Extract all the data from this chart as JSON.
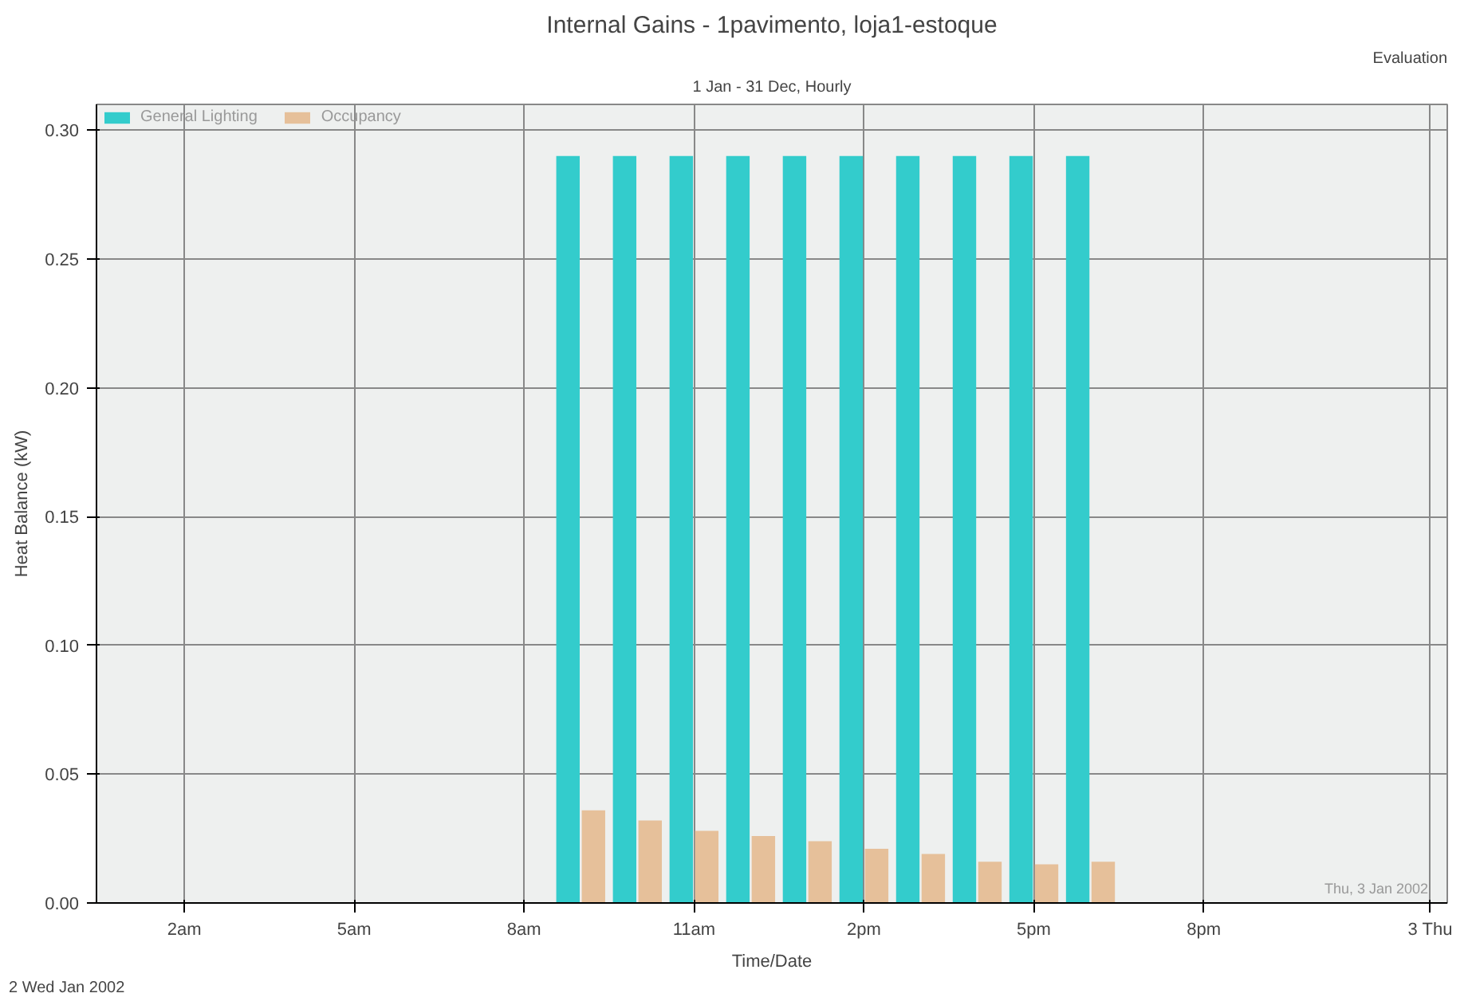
{
  "chart_data": {
    "type": "bar",
    "title": "Internal Gains - 1pavimento, loja1-estoque",
    "subtitle": "1 Jan - 31 Dec, Hourly",
    "xlabel": "Time/Date",
    "ylabel": "Heat Balance (kW)",
    "x": [
      "2002-01-02T09:00",
      "2002-01-02T10:00",
      "2002-01-02T11:00",
      "2002-01-02T12:00",
      "2002-01-02T13:00",
      "2002-01-02T14:00",
      "2002-01-02T15:00",
      "2002-01-02T16:00",
      "2002-01-02T17:00",
      "2002-01-02T18:00"
    ],
    "series": [
      {
        "name": "General Lighting",
        "color": "#33cccc",
        "values": [
          0.29,
          0.29,
          0.29,
          0.29,
          0.29,
          0.29,
          0.29,
          0.29,
          0.29,
          0.29
        ]
      },
      {
        "name": "Occupancy",
        "color": "#e6c09a",
        "values": [
          0.036,
          0.032,
          0.028,
          0.026,
          0.024,
          0.021,
          0.019,
          0.016,
          0.015,
          0.016
        ]
      }
    ],
    "xlim": [
      "2002-01-02T00:27",
      "2002-01-03T00:18"
    ],
    "ylim": [
      0,
      0.31
    ],
    "xticks": [
      {
        "value": "2002-01-02T02:00",
        "label": "2am"
      },
      {
        "value": "2002-01-02T05:00",
        "label": "5am"
      },
      {
        "value": "2002-01-02T08:00",
        "label": "8am"
      },
      {
        "value": "2002-01-02T11:00",
        "label": "11am"
      },
      {
        "value": "2002-01-02T14:00",
        "label": "2pm"
      },
      {
        "value": "2002-01-02T17:00",
        "label": "5pm"
      },
      {
        "value": "2002-01-02T20:00",
        "label": "8pm"
      },
      {
        "value": "2002-01-03T00:00",
        "label": "3 Thu"
      }
    ],
    "yticks": [
      {
        "value": 0,
        "label": "0.00"
      },
      {
        "value": 0.05,
        "label": "0.05"
      },
      {
        "value": 0.1,
        "label": "0.10"
      },
      {
        "value": 0.15,
        "label": "0.15"
      },
      {
        "value": 0.2,
        "label": "0.20"
      },
      {
        "value": 0.25,
        "label": "0.25"
      },
      {
        "value": 0.3,
        "label": "0.30"
      }
    ],
    "annotations": [
      "2 Wed Jan 2002",
      "Thu, 3 Jan 2002",
      "Evaluation"
    ],
    "grid": true,
    "legend": "top left"
  }
}
